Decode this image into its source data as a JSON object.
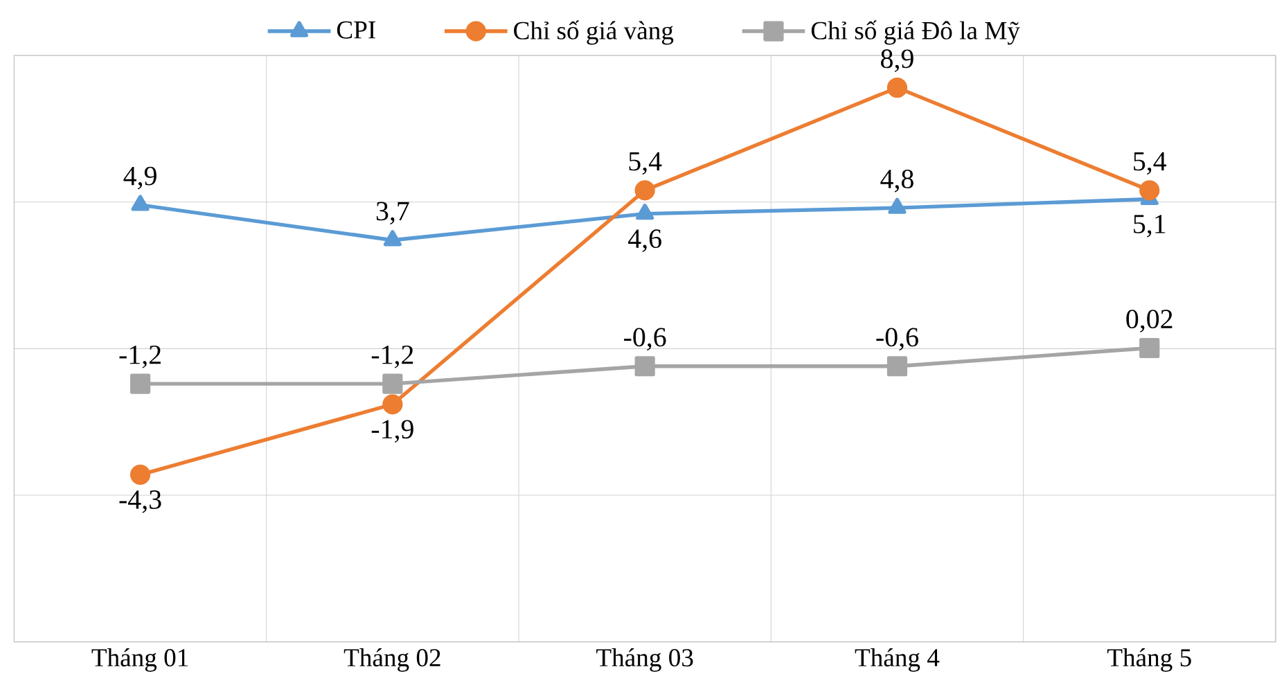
{
  "chart_data": {
    "type": "line",
    "categories": [
      "Tháng 01",
      "Tháng 02",
      "Tháng 03",
      "Tháng 4",
      "Tháng 5"
    ],
    "series": [
      {
        "name": "CPI",
        "color": "#5b9bd5",
        "marker": "triangle",
        "values": [
          4.9,
          3.7,
          4.6,
          4.8,
          5.1
        ],
        "value_labels": [
          "4,9",
          "3,7",
          "4,6",
          "4,8",
          "5,1"
        ]
      },
      {
        "name": "Chỉ số giá vàng",
        "color": "#ed7d31",
        "marker": "circle",
        "values": [
          -4.3,
          -1.9,
          5.4,
          8.9,
          5.4
        ],
        "value_labels": [
          "-4,3",
          "-1,9",
          "5,4",
          "8,9",
          "5,4"
        ]
      },
      {
        "name": "Chỉ số giá Đô la Mỹ",
        "color": "#a5a5a5",
        "marker": "square",
        "values": [
          -1.2,
          -1.2,
          -0.6,
          -0.6,
          0.02
        ],
        "value_labels": [
          "-1,2",
          "-1,2",
          "-0,6",
          "-0,6",
          "0,02"
        ]
      }
    ],
    "ylim": [
      -10,
      10
    ],
    "yticks": [
      {
        "value": -10,
        "label": null
      },
      {
        "value": -5,
        "label": null
      },
      {
        "value": 0,
        "label": null
      },
      {
        "value": 5,
        "label": null
      },
      {
        "value": 10,
        "label": null
      }
    ],
    "tick_labels": "x",
    "grid": true,
    "legend": "top",
    "line_style": "solid"
  }
}
